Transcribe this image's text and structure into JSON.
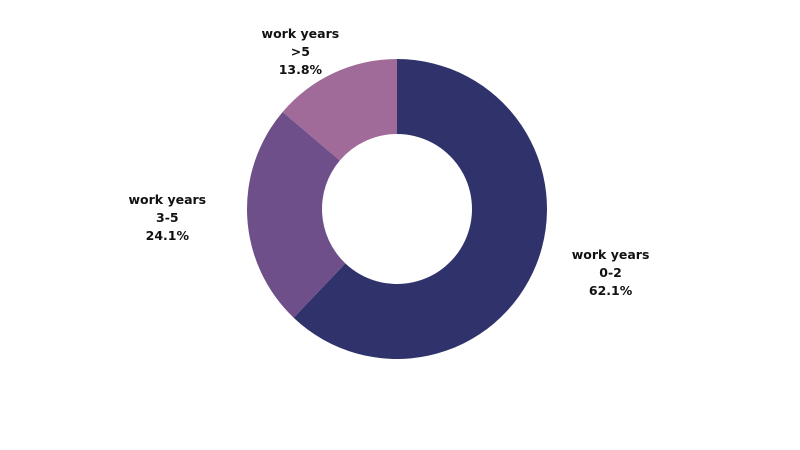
{
  "chart_data": {
    "type": "donut",
    "categories": [
      "work years 0-2",
      "work years 3-5",
      "work years >5"
    ],
    "values": [
      62.1,
      24.1,
      13.8
    ],
    "value_labels": [
      "62.1%",
      "24.1%",
      "13.8%"
    ],
    "colors": [
      "#30336b",
      "#6e4f8a",
      "#a06b98"
    ]
  }
}
